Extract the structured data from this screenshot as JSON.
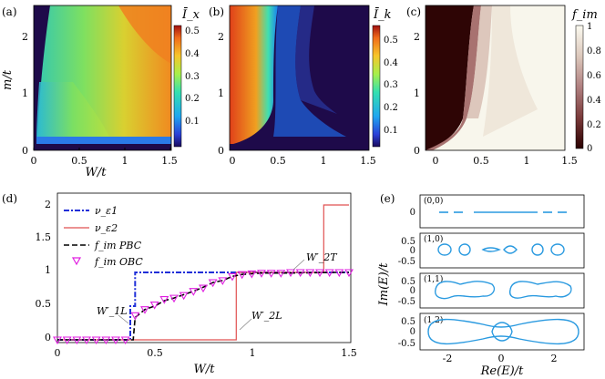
{
  "panels": {
    "a": {
      "label": "(a)",
      "colorbar_title": "Ī_x",
      "colorbar_ticks": [
        "0.5",
        "0.4",
        "0.3",
        "0.2",
        "0.1"
      ],
      "x_ticks": [
        "0",
        "0.5",
        "1",
        "1.5"
      ],
      "y_ticks": [
        "0",
        "1",
        "2"
      ],
      "xlabel": "W/t",
      "ylabel": "m/t"
    },
    "b": {
      "label": "(b)",
      "colorbar_title": "Ī_k",
      "colorbar_ticks": [
        "0.5",
        "0.4",
        "0.3",
        "0.2",
        "0.1"
      ],
      "x_ticks": [
        "0",
        "0.5",
        "1",
        "1.5"
      ],
      "y_ticks": [
        "0",
        "1",
        "2"
      ]
    },
    "c": {
      "label": "(c)",
      "colorbar_title": "f_im",
      "colorbar_ticks": [
        "1",
        "0.8",
        "0.6",
        "0.4",
        "0.2",
        "0"
      ],
      "x_ticks": [
        "0",
        "0.5",
        "1",
        "1.5"
      ],
      "y_ticks": [
        "0",
        "1",
        "2"
      ]
    },
    "d": {
      "label": "(d)",
      "xlabel": "W/t",
      "x_ticks": [
        "0",
        "0.5",
        "1",
        "1.5"
      ],
      "y_ticks": [
        "0",
        "0.5",
        "1",
        "1.5",
        "2"
      ],
      "legend": [
        "ν_ε1",
        "ν_ε2",
        "f_im PBC",
        "f_im OBC"
      ],
      "annotations": [
        "W′_1L",
        "W′_2L",
        "W′_2T"
      ]
    },
    "e": {
      "label": "(e)",
      "xlabel": "Re(E)/t",
      "ylabel": "Im(E)/t",
      "x_ticks": [
        "-2",
        "0",
        "2"
      ],
      "subplots": [
        {
          "tag": "(0,0)",
          "y_ticks": [
            "0"
          ]
        },
        {
          "tag": "(1,0)",
          "y_ticks": [
            "0.5",
            "0",
            "-0.5"
          ]
        },
        {
          "tag": "(1,1)",
          "y_ticks": [
            "0.5",
            "0",
            "-0.5"
          ]
        },
        {
          "tag": "(1,2)",
          "y_ticks": [
            "0.5",
            "0",
            "-0.5"
          ]
        }
      ]
    }
  },
  "chart_data": [
    {
      "type": "heatmap",
      "panel": "a",
      "quantity": "Ī_x",
      "xlabel": "W/t",
      "ylabel": "m/t",
      "xlim": [
        0,
        1.5
      ],
      "ylim": [
        0,
        2.5
      ],
      "zlim": [
        0,
        0.55
      ],
      "description_values": {
        "dark_region": "W/t < ~0.05–0.4 depending on m",
        "peak": 0.5
      }
    },
    {
      "type": "heatmap",
      "panel": "b",
      "quantity": "Ī_k",
      "xlabel": "W/t",
      "ylabel": "m/t",
      "xlim": [
        0,
        1.5
      ],
      "ylim": [
        0,
        2.5
      ],
      "zlim": [
        0,
        0.55
      ]
    },
    {
      "type": "heatmap",
      "panel": "c",
      "quantity": "f_im",
      "xlabel": "W/t",
      "ylabel": "m/t",
      "xlim": [
        0,
        1.5
      ],
      "ylim": [
        0,
        2.5
      ],
      "zlim": [
        0,
        1
      ]
    },
    {
      "type": "line",
      "panel": "d",
      "xlabel": "W/t",
      "xlim": [
        0,
        1.5
      ],
      "ylim": [
        -0.1,
        2.1
      ],
      "series": [
        {
          "name": "ν_ε1",
          "x": [
            0,
            0.375,
            0.375,
            0.4,
            0.4,
            1.5
          ],
          "y": [
            0,
            0,
            0.5,
            0.5,
            1,
            1
          ]
        },
        {
          "name": "ν_ε2",
          "x": [
            0,
            0.92,
            0.92,
            1.37,
            1.37,
            1.5
          ],
          "y": [
            0,
            0,
            1,
            1,
            2,
            2
          ]
        },
        {
          "name": "f_im PBC",
          "x": [
            0,
            0.39,
            0.4,
            0.45,
            0.5,
            0.55,
            0.6,
            0.65,
            0.7,
            0.75,
            0.8,
            0.85,
            0.9,
            0.95,
            1.0,
            1.05,
            1.1,
            1.2,
            1.3,
            1.4,
            1.5
          ],
          "y": [
            0,
            0,
            0.33,
            0.45,
            0.5,
            0.58,
            0.62,
            0.67,
            0.72,
            0.78,
            0.85,
            0.88,
            0.94,
            0.97,
            0.98,
            0.99,
            0.99,
            0.99,
            0.995,
            1.0,
            1.0
          ]
        },
        {
          "name": "f_im OBC",
          "x": [
            0,
            0.05,
            0.1,
            0.15,
            0.2,
            0.25,
            0.3,
            0.35,
            0.4,
            0.45,
            0.5,
            0.55,
            0.6,
            0.65,
            0.7,
            0.75,
            0.8,
            0.85,
            0.9,
            0.95,
            1.0,
            1.05,
            1.1,
            1.15,
            1.2,
            1.25,
            1.3,
            1.35,
            1.4,
            1.45,
            1.5
          ],
          "y": [
            0,
            0,
            0,
            0,
            0,
            0,
            0,
            0,
            0.36,
            0.45,
            0.52,
            0.6,
            0.62,
            0.66,
            0.72,
            0.77,
            0.85,
            0.88,
            0.94,
            0.97,
            0.98,
            0.99,
            0.99,
            0.99,
            1.0,
            1.0,
            1.0,
            1.0,
            1.0,
            1.0,
            1.0
          ]
        }
      ]
    },
    {
      "type": "scatter",
      "panel": "e",
      "xlabel": "Re(E)/t",
      "ylabel": "Im(E)/t",
      "xlim": [
        -3,
        3
      ],
      "subplots": [
        "(0,0)",
        "(1,0)",
        "(1,1)",
        "(1,2)"
      ]
    }
  ]
}
